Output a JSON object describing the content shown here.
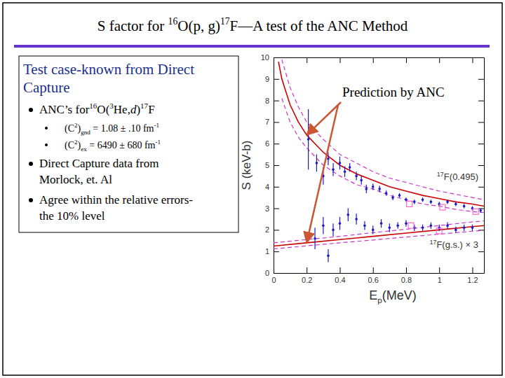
{
  "slide": {
    "title": [
      {
        "text": "S factor for "
      },
      {
        "text": "16",
        "sup": true
      },
      {
        "text": "O(p, g)"
      },
      {
        "text": "17",
        "sup": true
      },
      {
        "text": "F—A test of the ANC Method"
      }
    ],
    "box": {
      "heading": [
        [
          {
            "text": "Test case-known from Direct"
          }
        ],
        [
          {
            "text": "Capture"
          }
        ]
      ],
      "bullets": [
        {
          "lines": [
            [
              {
                "text": "ANC’s  for"
              },
              {
                "text": "16",
                "sup": true
              },
              {
                "text": "O("
              },
              {
                "text": "3",
                "sup": true
              },
              {
                "text": "He,"
              },
              {
                "text": "d",
                "italic": true
              },
              {
                "text": ")"
              },
              {
                "text": "17",
                "sup": true
              },
              {
                "text": "F"
              }
            ]
          ],
          "sub": [
            [
              {
                "text": "(C"
              },
              {
                "text": "2",
                "sup": true
              },
              {
                "text": ")"
              },
              {
                "text": "gnd",
                "sub": true
              },
              {
                "text": " = 1.08 ± .10 fm"
              },
              {
                "text": "-1",
                "sup": true
              }
            ],
            [
              {
                "text": "(C"
              },
              {
                "text": "2",
                "sup": true
              },
              {
                "text": ")"
              },
              {
                "text": "ex",
                "sub": true
              },
              {
                "text": " = 6490 ± 680 fm"
              },
              {
                "text": "-1",
                "sup": true
              }
            ]
          ]
        },
        {
          "lines": [
            [
              {
                "text": "Direct Capture data from"
              }
            ],
            [
              {
                "text": "Morlock, et. Al"
              }
            ]
          ],
          "sub": []
        },
        {
          "lines": [
            [
              {
                "text": "Agree within the relative errors-"
              }
            ],
            [
              {
                "text": "the 10% level"
              }
            ]
          ],
          "sub": []
        }
      ]
    }
  },
  "chart_data": {
    "type": "line",
    "annotation": "Prediction by ANC",
    "xlabel": [
      {
        "text": "E"
      },
      {
        "text": "p",
        "sub": true
      },
      {
        "text": "(MeV)"
      }
    ],
    "ylabel": "S (keV-b)",
    "xlim": [
      0,
      1.27
    ],
    "ylim": [
      0,
      10
    ],
    "xticks": [
      0,
      0.2,
      0.4,
      0.6,
      0.8,
      1,
      1.2
    ],
    "yticks": [
      0,
      1,
      2,
      3,
      4,
      5,
      6,
      7,
      8,
      9,
      10
    ],
    "grid": false,
    "series": [
      {
        "name": "17F(0.495)",
        "type": "line",
        "color": "#cc0000",
        "line_style": "solid",
        "x": [
          0.03,
          0.05,
          0.1,
          0.15,
          0.2,
          0.25,
          0.3,
          0.4,
          0.5,
          0.6,
          0.7,
          0.8,
          0.9,
          1.0,
          1.1,
          1.2,
          1.27
        ],
        "values": [
          9.8,
          9.0,
          7.8,
          7.0,
          6.4,
          6.0,
          5.6,
          5.0,
          4.6,
          4.3,
          4.0,
          3.8,
          3.6,
          3.45,
          3.3,
          3.2,
          3.1
        ]
      },
      {
        "type": "line",
        "color": "#cc33cc",
        "line_style": "dashed",
        "x": [
          0.05,
          0.1,
          0.15,
          0.2,
          0.25,
          0.3,
          0.4,
          0.5,
          0.6,
          0.7,
          0.8,
          0.9,
          1.0,
          1.1,
          1.2,
          1.27
        ],
        "values": [
          9.9,
          8.6,
          7.7,
          7.0,
          6.6,
          6.2,
          5.5,
          5.1,
          4.7,
          4.4,
          4.2,
          4.0,
          3.8,
          3.65,
          3.5,
          3.4
        ]
      },
      {
        "type": "line",
        "color": "#cc33cc",
        "line_style": "dashed",
        "x": [
          0.05,
          0.1,
          0.15,
          0.2,
          0.25,
          0.3,
          0.4,
          0.5,
          0.6,
          0.7,
          0.8,
          0.9,
          1.0,
          1.1,
          1.2,
          1.27
        ],
        "values": [
          8.1,
          7.0,
          6.3,
          5.8,
          5.4,
          5.0,
          4.5,
          4.1,
          3.9,
          3.6,
          3.4,
          3.2,
          3.1,
          2.95,
          2.85,
          2.8
        ]
      },
      {
        "name": "17F(g.s.) × 3",
        "type": "line",
        "color": "#cc0000",
        "line_style": "solid",
        "x": [
          0,
          0.2,
          0.4,
          0.6,
          0.8,
          1.0,
          1.2,
          1.27
        ],
        "values": [
          1.25,
          1.4,
          1.55,
          1.7,
          1.85,
          2.0,
          2.15,
          2.2
        ]
      },
      {
        "type": "line",
        "color": "#cc33cc",
        "line_style": "dashed",
        "x": [
          0,
          0.2,
          0.4,
          0.6,
          0.8,
          1.0,
          1.2,
          1.27
        ],
        "values": [
          1.4,
          1.55,
          1.7,
          1.87,
          2.03,
          2.2,
          2.37,
          2.42
        ]
      },
      {
        "type": "line",
        "color": "#cc33cc",
        "line_style": "dashed",
        "x": [
          0,
          0.2,
          0.4,
          0.6,
          0.8,
          1.0,
          1.2,
          1.27
        ],
        "values": [
          1.12,
          1.26,
          1.4,
          1.53,
          1.67,
          1.8,
          1.94,
          1.98
        ]
      },
      {
        "type": "scatter",
        "color": "#1a1acc",
        "marker": "dot",
        "x": [
          0.21,
          0.26,
          0.3,
          0.33,
          0.36,
          0.4,
          0.43,
          0.46,
          0.5,
          0.53,
          0.56,
          0.6,
          0.64,
          0.68,
          0.72,
          0.76,
          0.8,
          0.85,
          0.9,
          0.95,
          1.0,
          1.05,
          1.1,
          1.15,
          1.2,
          1.25
        ],
        "values": [
          6.2,
          5.1,
          4.5,
          5.3,
          4.8,
          5.1,
          4.7,
          4.9,
          4.5,
          4.3,
          3.9,
          4.0,
          3.9,
          3.7,
          3.5,
          3.6,
          3.4,
          3.3,
          3.4,
          3.3,
          3.2,
          3.3,
          3.2,
          3.1,
          3.0,
          2.9
        ],
        "errors": [
          1.4,
          0.4,
          0.4,
          0.3,
          0.3,
          0.3,
          0.25,
          0.2,
          0.2,
          0.2,
          0.2,
          0.15,
          0.15,
          0.12,
          0.12,
          0.1,
          0.1,
          0.1,
          0.1,
          0.1,
          0.1,
          0.1,
          0.1,
          0.1,
          0.1,
          0.1
        ]
      },
      {
        "type": "scatter",
        "color": "#1a1acc",
        "marker": "dot",
        "x": [
          0.25,
          0.3,
          0.33,
          0.36,
          0.4,
          0.45,
          0.5,
          0.55,
          0.6,
          0.65,
          0.7,
          0.75,
          0.8,
          0.85,
          0.9,
          0.95,
          1.0,
          1.05,
          1.1,
          1.15,
          1.2
        ],
        "values": [
          1.6,
          2.2,
          0.8,
          2.0,
          2.3,
          2.7,
          2.5,
          2.2,
          2.0,
          2.3,
          2.1,
          2.2,
          2.3,
          2.1,
          2.1,
          2.2,
          2.1,
          2.2,
          2.0,
          2.1,
          2.1
        ],
        "errors": [
          0.5,
          0.4,
          0.3,
          0.3,
          0.3,
          0.3,
          0.25,
          0.2,
          0.2,
          0.2,
          0.2,
          0.15,
          0.15,
          0.15,
          0.15,
          0.15,
          0.15,
          0.15,
          0.15,
          0.15,
          0.15
        ]
      },
      {
        "type": "scatter",
        "color": "#ff66cc",
        "marker": "square",
        "x": [
          0.82,
          1.02,
          1.22,
          0.83,
          1.0
        ],
        "values": [
          3.2,
          3.05,
          2.85,
          2.2,
          1.95
        ]
      }
    ]
  }
}
